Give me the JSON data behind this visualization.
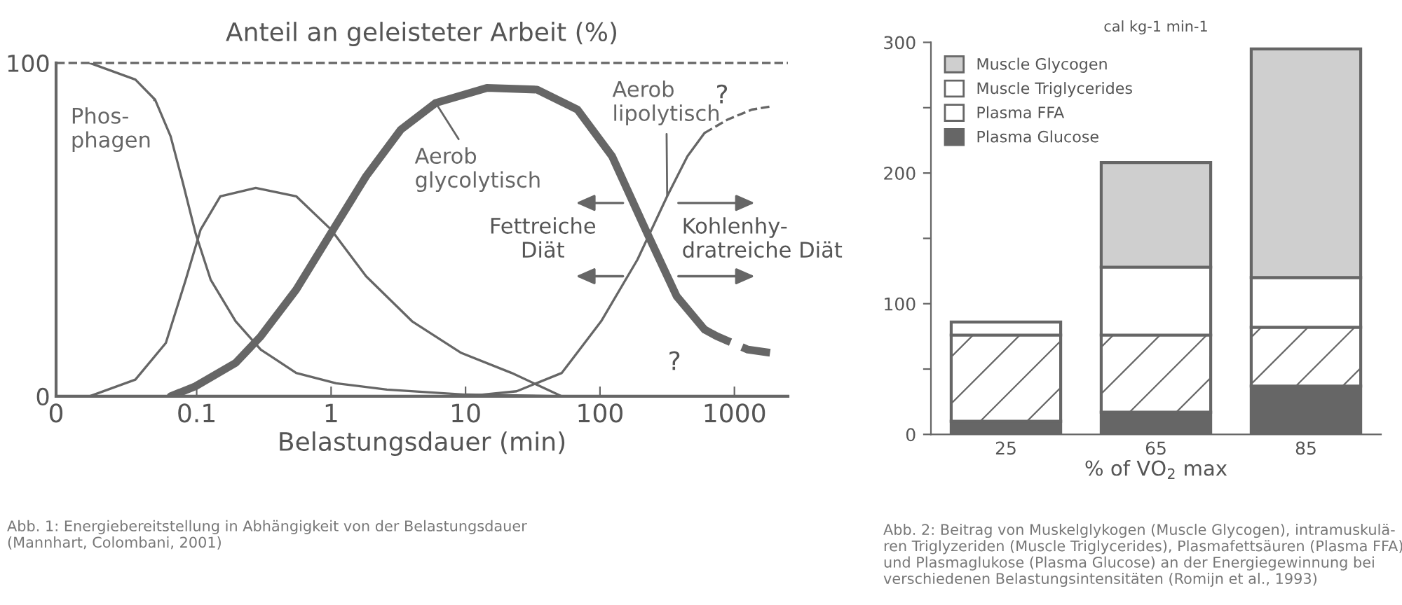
{
  "chart_data": [
    {
      "type": "line",
      "ylabel": "Anteil an geleisteter Arbeit (%)",
      "xlabel": "Belastungsdauer (min)",
      "log": "x",
      "xlim": [
        0.009,
        2500
      ],
      "xticks": [
        {
          "value": 0.009,
          "label": "0"
        },
        0.1,
        1,
        10,
        100,
        1000
      ],
      "ylim": [
        0,
        100
      ],
      "yticks": [
        0,
        100
      ],
      "ref_lines": [
        {
          "axis": "y",
          "value": 100,
          "color": "#666666",
          "line_style": "dashed"
        }
      ],
      "series": [
        {
          "name": "Phos-\nphagen",
          "color": "#666666",
          "x": [
            0.016,
            0.035,
            0.049,
            0.064,
            0.079,
            0.098,
            0.127,
            0.195,
            0.3,
            0.55,
            1.09,
            2.6,
            10,
            52
          ],
          "values": [
            100,
            95,
            89,
            78,
            64,
            49,
            35,
            22.5,
            14,
            7,
            3.9,
            2,
            0.5,
            0
          ]
        },
        {
          "color": "#666666",
          "x": [
            0.016,
            0.035,
            0.059,
            0.083,
            0.107,
            0.15,
            0.275,
            0.55,
            1,
            1.82,
            4,
            9.3,
            22,
            52
          ],
          "values": [
            0,
            5,
            16,
            35,
            50,
            60,
            62.5,
            60,
            50,
            36,
            22.5,
            13,
            7,
            0
          ]
        },
        {
          "name": "Aerob\nglycolytisch",
          "color": "#666666",
          "x": [
            0.064,
            0.098,
            0.195,
            0.3,
            0.55,
            1,
            1.82,
            3.3,
            6,
            14.4,
            34,
            68,
            123,
            224,
            372,
            600
          ],
          "values": [
            0,
            3,
            10,
            18,
            32,
            49,
            66,
            80,
            88,
            92.5,
            92,
            86,
            72,
            49,
            30,
            20
          ]
        },
        {
          "color": "#666666",
          "line_style": "dashed",
          "x": [
            600,
            740,
            1260,
            1900
          ],
          "values": [
            20,
            18,
            14,
            13
          ]
        },
        {
          "name": "Aerob\nlipolytisch",
          "color": "#666666",
          "x": [
            10.2,
            24,
            52,
            102,
            190,
            316,
            447,
            600
          ],
          "values": [
            0,
            1.5,
            7,
            22.5,
            41,
            60,
            72,
            79
          ]
        },
        {
          "color": "#666666",
          "line_style": "dashed",
          "x": [
            600,
            890,
            1350,
            1900
          ],
          "values": [
            79,
            83,
            86,
            87
          ]
        }
      ],
      "annotations": [
        "?",
        "?",
        "Fettreiche\nDiät",
        "Kohlenhy-\ndratreiche Diät",
        "Abb. 1: Energiebereitstellung in Abhängigkeit von der Belastungsdauer\n(Mannhart, Colombani, 2001)"
      ]
    },
    {
      "type": "bar",
      "stacked": true,
      "ylabel": "cal kg-1 min-1",
      "xlabel": "% of VO$_{2}$ max",
      "categories": [
        "25",
        "65",
        "85"
      ],
      "ylim": [
        0,
        300
      ],
      "yticks": [
        0,
        {
          "value": 50,
          "label": null
        },
        100,
        {
          "value": 150,
          "label": null
        },
        200,
        {
          "value": 250,
          "label": null
        },
        300
      ],
      "legend": "top left",
      "series": [
        {
          "name": "Plasma Glucose",
          "color": "#666666",
          "values": [
            10,
            17,
            37
          ]
        },
        {
          "name": "Plasma FFA",
          "color": "#ffffff",
          "values": [
            66,
            59,
            45
          ]
        },
        {
          "name": "Muscle Triglycerides",
          "color": "#ffffff",
          "values": [
            10,
            52,
            38
          ]
        },
        {
          "name": "Muscle Glycogen",
          "color": "#cfcfcf",
          "values": [
            null,
            80,
            175
          ]
        }
      ],
      "annotations": [
        "Abb. 2: Beitrag von Muskelglykogen (Muscle Glycogen), intramuskulä-\nren Triglyzeriden (Muscle Triglycerides), Plasmafettsäuren (Plasma FFA)\nund Plasmaglukose (Plasma Glucose) an der Energiegewinnung bei\nverschiedenen Belastungsintensitäten (Romijn et al., 1993)"
      ]
    }
  ]
}
